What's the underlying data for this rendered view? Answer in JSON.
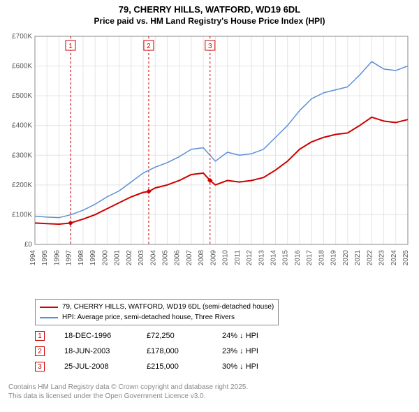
{
  "title": {
    "line1": "79, CHERRY HILLS, WATFORD, WD19 6DL",
    "line2": "Price paid vs. HM Land Registry's House Price Index (HPI)",
    "fontsize_line1": 13,
    "fontsize_line2": 12,
    "color": "#000000"
  },
  "chart": {
    "type": "line",
    "background_color": "#ffffff",
    "plot_border_color": "#888888",
    "grid_color": "#e4e4e4",
    "y_axis": {
      "min": 0,
      "max": 700,
      "ticks": [
        0,
        100,
        200,
        300,
        400,
        500,
        600,
        700
      ],
      "labels": [
        "£0",
        "£100K",
        "£200K",
        "£300K",
        "£400K",
        "£500K",
        "£600K",
        "£700K"
      ],
      "label_fontsize": 10,
      "label_color": "#555555"
    },
    "x_axis": {
      "min": 1994,
      "max": 2025,
      "ticks": [
        1994,
        1995,
        1996,
        1997,
        1998,
        1999,
        2000,
        2001,
        2002,
        2003,
        2004,
        2005,
        2006,
        2007,
        2008,
        2009,
        2010,
        2011,
        2012,
        2013,
        2014,
        2015,
        2016,
        2017,
        2018,
        2019,
        2020,
        2021,
        2022,
        2023,
        2024,
        2025
      ],
      "labels": [
        "1994",
        "1995",
        "1996",
        "1997",
        "1998",
        "1999",
        "2000",
        "2001",
        "2002",
        "2003",
        "2004",
        "2005",
        "2006",
        "2007",
        "2008",
        "2009",
        "2010",
        "2011",
        "2012",
        "2013",
        "2014",
        "2015",
        "2016",
        "2017",
        "2018",
        "2019",
        "2020",
        "2021",
        "2022",
        "2023",
        "2024",
        "2025"
      ],
      "label_fontsize": 10,
      "label_color": "#555555",
      "label_rotation": -90
    },
    "series": [
      {
        "name": "price_paid",
        "label": "79, CHERRY HILLS, WATFORD, WD19 6DL (semi-detached house)",
        "color": "#cc0000",
        "line_width": 2,
        "data": [
          [
            1994,
            72
          ],
          [
            1995,
            70
          ],
          [
            1996,
            68
          ],
          [
            1996.96,
            72
          ],
          [
            1998,
            85
          ],
          [
            1999,
            100
          ],
          [
            2000,
            120
          ],
          [
            2001,
            140
          ],
          [
            2002,
            160
          ],
          [
            2003,
            175
          ],
          [
            2003.46,
            178
          ],
          [
            2004,
            190
          ],
          [
            2005,
            200
          ],
          [
            2006,
            215
          ],
          [
            2007,
            235
          ],
          [
            2008,
            240
          ],
          [
            2008.56,
            215
          ],
          [
            2009,
            200
          ],
          [
            2010,
            215
          ],
          [
            2011,
            210
          ],
          [
            2012,
            215
          ],
          [
            2013,
            225
          ],
          [
            2014,
            250
          ],
          [
            2015,
            280
          ],
          [
            2016,
            320
          ],
          [
            2017,
            345
          ],
          [
            2018,
            360
          ],
          [
            2019,
            370
          ],
          [
            2020,
            375
          ],
          [
            2021,
            400
          ],
          [
            2022,
            428
          ],
          [
            2023,
            415
          ],
          [
            2024,
            410
          ],
          [
            2025,
            420
          ]
        ],
        "markers": [
          {
            "x": 1996.96,
            "y": 72,
            "shape": "diamond",
            "size": 6
          },
          {
            "x": 2003.46,
            "y": 178,
            "shape": "diamond",
            "size": 6
          },
          {
            "x": 2008.56,
            "y": 215,
            "shape": "diamond",
            "size": 6
          }
        ]
      },
      {
        "name": "hpi",
        "label": "HPI: Average price, semi-detached house, Three Rivers",
        "color": "#5b8fd6",
        "line_width": 1.5,
        "data": [
          [
            1994,
            95
          ],
          [
            1995,
            92
          ],
          [
            1996,
            90
          ],
          [
            1997,
            100
          ],
          [
            1998,
            115
          ],
          [
            1999,
            135
          ],
          [
            2000,
            160
          ],
          [
            2001,
            180
          ],
          [
            2002,
            210
          ],
          [
            2003,
            240
          ],
          [
            2004,
            260
          ],
          [
            2005,
            275
          ],
          [
            2006,
            295
          ],
          [
            2007,
            320
          ],
          [
            2008,
            325
          ],
          [
            2009,
            280
          ],
          [
            2010,
            310
          ],
          [
            2011,
            300
          ],
          [
            2012,
            305
          ],
          [
            2013,
            320
          ],
          [
            2014,
            360
          ],
          [
            2015,
            400
          ],
          [
            2016,
            450
          ],
          [
            2017,
            490
          ],
          [
            2018,
            510
          ],
          [
            2019,
            520
          ],
          [
            2020,
            530
          ],
          [
            2021,
            570
          ],
          [
            2022,
            615
          ],
          [
            2023,
            590
          ],
          [
            2024,
            585
          ],
          [
            2025,
            600
          ]
        ]
      }
    ],
    "event_lines": [
      {
        "id": "1",
        "x": 1996.96,
        "color": "#cc0000",
        "dash": "3,3",
        "label_box_border": "#cc0000"
      },
      {
        "id": "2",
        "x": 2003.46,
        "color": "#cc0000",
        "dash": "3,3",
        "label_box_border": "#cc0000"
      },
      {
        "id": "3",
        "x": 2008.56,
        "color": "#cc0000",
        "dash": "3,3",
        "label_box_border": "#cc0000"
      }
    ]
  },
  "legend": {
    "border_color": "#888888",
    "fontsize": 10,
    "items": [
      {
        "color": "#cc0000",
        "label": "79, CHERRY HILLS, WATFORD, WD19 6DL (semi-detached house)"
      },
      {
        "color": "#5b8fd6",
        "label": "HPI: Average price, semi-detached house, Three Rivers"
      }
    ]
  },
  "events_table": {
    "fontsize": 11,
    "marker_border": "#cc0000",
    "marker_text_color": "#cc0000",
    "rows": [
      {
        "id": "1",
        "date": "18-DEC-1996",
        "price": "£72,250",
        "delta": "24% ↓ HPI"
      },
      {
        "id": "2",
        "date": "18-JUN-2003",
        "price": "£178,000",
        "delta": "23% ↓ HPI"
      },
      {
        "id": "3",
        "date": "25-JUL-2008",
        "price": "£215,000",
        "delta": "30% ↓ HPI"
      }
    ]
  },
  "footer": {
    "line1": "Contains HM Land Registry data © Crown copyright and database right 2025.",
    "line2": "This data is licensed under the Open Government Licence v3.0.",
    "color": "#888888",
    "fontsize": 10
  }
}
